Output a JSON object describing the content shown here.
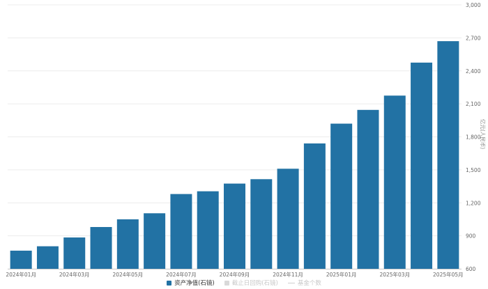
{
  "chart_data": {
    "type": "bar",
    "categories": [
      "2024年01月",
      "2024年02月",
      "2024年03月",
      "2024年04月",
      "2024年05月",
      "2024年06月",
      "2024年07月",
      "2024年08月",
      "2024年09月",
      "2024年10月",
      "2024年11月",
      "2024年12月",
      "2025年01月",
      "2025年02月",
      "2025年03月",
      "2025年04月",
      "2025年05月"
    ],
    "x_tick_labels": [
      "2024年01月",
      "2024年03月",
      "2024年05月",
      "2024年07月",
      "2024年09月",
      "2024年11月",
      "2025年01月",
      "2025年03月",
      "2025年05月"
    ],
    "series": [
      {
        "name": "资产净值(石镜)",
        "color": "#2272a4",
        "values": [
          765,
          805,
          885,
          980,
          1050,
          1105,
          1280,
          1305,
          1375,
          1415,
          1510,
          1740,
          1920,
          2045,
          2175,
          2475,
          2670
        ]
      }
    ],
    "y_ticks": [
      600,
      900,
      1200,
      1500,
      1800,
      2100,
      2400,
      2700,
      3000
    ],
    "y_tick_labels": [
      "600",
      "900",
      "1,200",
      "1,500",
      "1,800",
      "2,100",
      "2,400",
      "2,700",
      "3,000"
    ],
    "ylim": [
      600,
      3000
    ],
    "y_axis_position": "right",
    "ylabel": "亿元(人民币)",
    "grid": true,
    "legend_position": "bottom-center"
  },
  "legend": {
    "items": [
      {
        "label": "资产净值(石镜)",
        "color": "#2272a4",
        "kind": "box",
        "active": true
      },
      {
        "label": "截止日回购(石镜)",
        "color": "#d9d9d9",
        "kind": "box",
        "active": false
      },
      {
        "label": "基金个数",
        "color": "#cfcfcf",
        "kind": "line",
        "active": false
      }
    ]
  }
}
